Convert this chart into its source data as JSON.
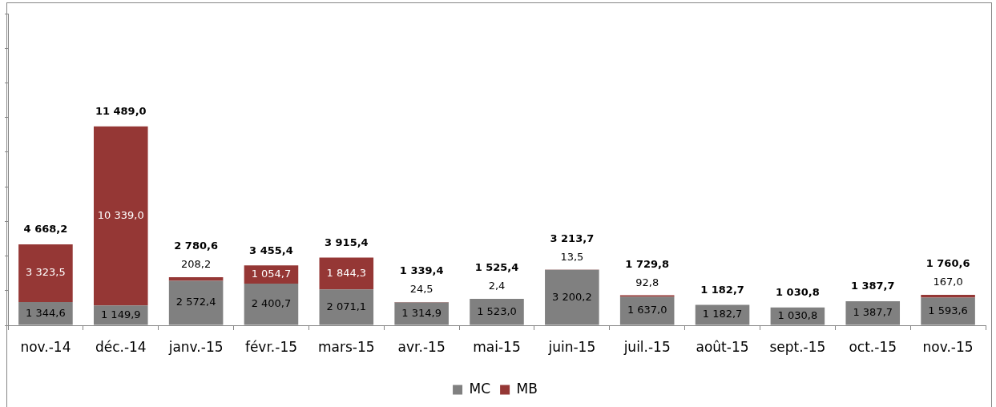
{
  "chart_data": {
    "type": "bar",
    "stacked": true,
    "categories": [
      "nov.-14",
      "déc.-14",
      "janv.-15",
      "févr.-15",
      "mars-15",
      "avr.-15",
      "mai-15",
      "juin-15",
      "juil.-15",
      "août-15",
      "sept.-15",
      "oct.-15",
      "nov.-15"
    ],
    "series": [
      {
        "name": "MC",
        "color": "#808080",
        "values": [
          1344.6,
          1149.9,
          2572.4,
          2400.7,
          2071.1,
          1314.9,
          1523.0,
          3200.2,
          1637.0,
          1182.7,
          1030.8,
          1387.7,
          1593.6
        ],
        "value_labels": [
          "1 344,6",
          "1 149,9",
          "2 572,4",
          "2 400,7",
          "2 071,1",
          "1 314,9",
          "1 523,0",
          "3 200,2",
          "1 637,0",
          "1 182,7",
          "1 030,8",
          "1 387,7",
          "1 593,6"
        ]
      },
      {
        "name": "MB",
        "color": "#953735",
        "values": [
          3323.5,
          10339.0,
          208.2,
          1054.7,
          1844.3,
          24.5,
          2.4,
          13.5,
          92.8,
          null,
          null,
          null,
          167.0
        ],
        "value_labels": [
          "3 323,5",
          "10 339,0",
          "208,2",
          "1 054,7",
          "1 844,3",
          "24,5",
          "2,4",
          "13,5",
          "92,8",
          null,
          null,
          null,
          "167,0"
        ]
      }
    ],
    "totals": [
      "4 668,2",
      "11 489,0",
      "2 780,6",
      "3 455,4",
      "3 915,4",
      "1 339,4",
      "1 525,4",
      "3 213,7",
      "1 729,8",
      "1 182,7",
      "1 030,8",
      "1 387,7",
      "1 760,6"
    ],
    "ylim": [
      0,
      18000
    ],
    "yticks": [
      {
        "value": 0,
        "label": null
      },
      {
        "value": 2000,
        "label": null
      },
      {
        "value": 4000,
        "label": null
      },
      {
        "value": 6000,
        "label": null
      },
      {
        "value": 8000,
        "label": null
      },
      {
        "value": 10000,
        "label": null
      },
      {
        "value": 12000,
        "label": null
      }
    ],
    "tick_labels": "x",
    "grid": false,
    "legend": "bottom"
  }
}
